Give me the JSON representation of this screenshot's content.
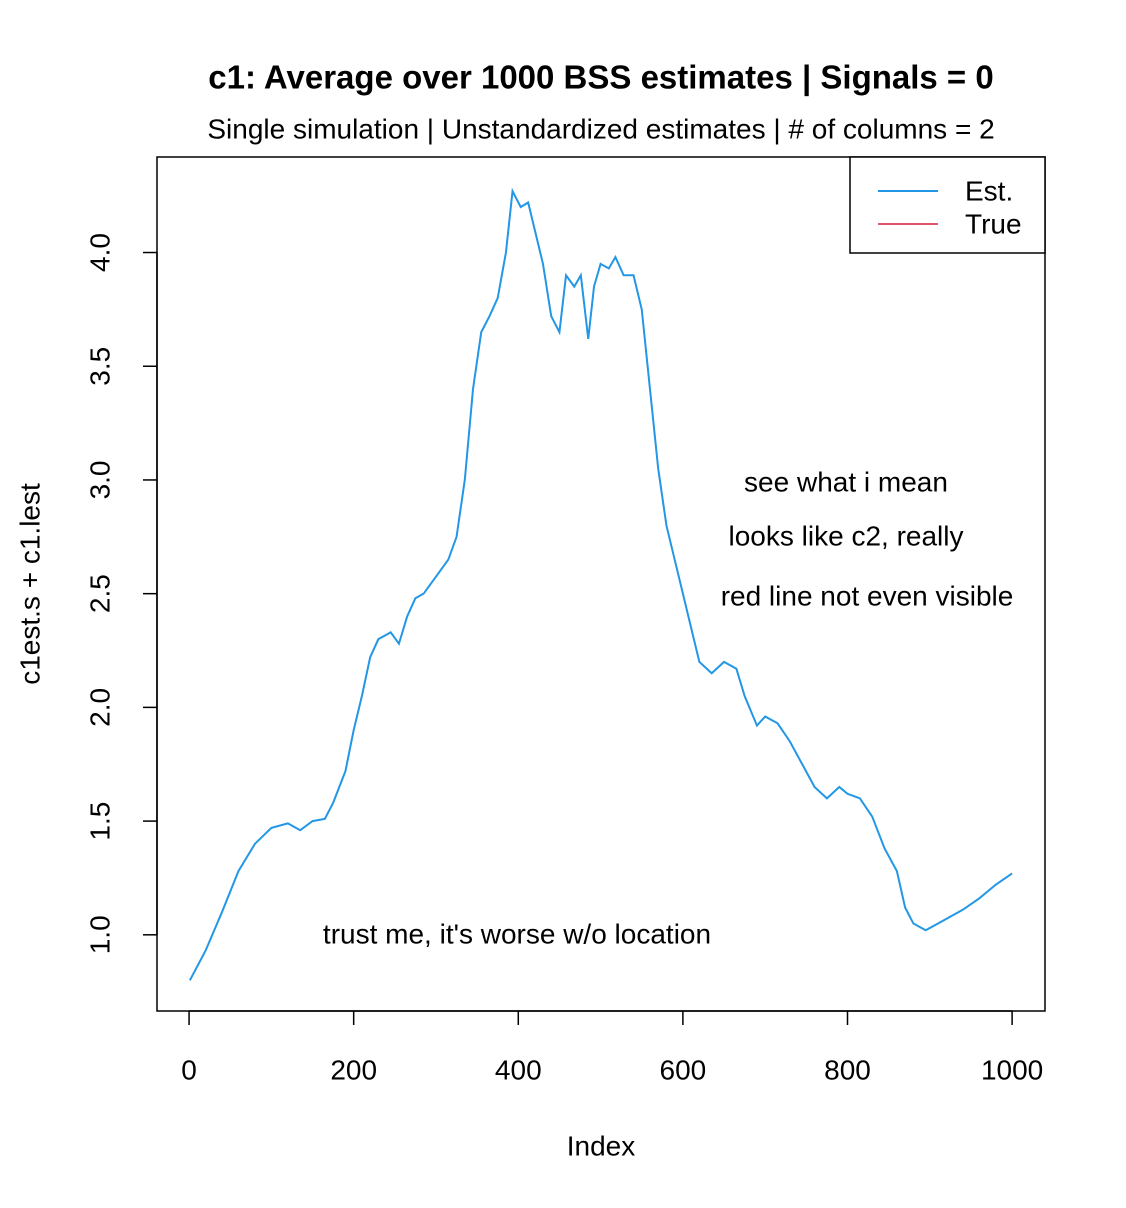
{
  "chart_data": {
    "type": "line",
    "title": "c1: Average over 1000 BSS estimates  |  Signals = 0",
    "subtitle": "Single simulation  |  Unstandardized estimates  |  # of columns = 2",
    "x_label": "Index",
    "y_label": "c1est.s + c1.lest",
    "annotations": [
      "see what i mean",
      "looks like c2, really",
      "red line not even visible",
      "trust me, it's worse w/o location"
    ],
    "legend_position": "top-right",
    "xlim": [
      -38.96,
      1039.96
    ],
    "xticks": [
      0,
      200,
      400,
      600,
      800,
      1000
    ],
    "ylim": [
      0.665,
      4.42
    ],
    "yticks": [
      1.0,
      1.5,
      2.0,
      2.5,
      3.0,
      3.5,
      4.0
    ],
    "ytick_labels": [
      "1.0",
      "1.5",
      "2.0",
      "2.5",
      "3.0",
      "3.5",
      "4.0"
    ],
    "x": [
      1,
      20,
      40,
      60,
      80,
      100,
      120,
      135,
      150,
      165,
      175,
      190,
      200,
      210,
      220,
      230,
      245,
      255,
      265,
      275,
      285,
      295,
      305,
      315,
      325,
      335,
      345,
      355,
      365,
      375,
      385,
      393,
      403,
      412,
      420,
      430,
      440,
      450,
      458,
      468,
      476,
      485,
      492,
      500,
      510,
      518,
      528,
      540,
      550,
      560,
      570,
      580,
      590,
      600,
      610,
      620,
      635,
      650,
      665,
      675,
      690,
      700,
      715,
      730,
      745,
      760,
      775,
      790,
      800,
      815,
      830,
      845,
      860,
      870,
      880,
      895,
      910,
      925,
      940,
      960,
      980,
      1000
    ],
    "series": [
      {
        "name": "Est.",
        "color": "#2297E6",
        "values": [
          0.8,
          0.93,
          1.1,
          1.28,
          1.4,
          1.47,
          1.49,
          1.46,
          1.5,
          1.51,
          1.58,
          1.72,
          1.9,
          2.05,
          2.22,
          2.3,
          2.33,
          2.28,
          2.4,
          2.48,
          2.5,
          2.55,
          2.6,
          2.65,
          2.75,
          3.0,
          3.4,
          3.65,
          3.72,
          3.8,
          4.0,
          4.27,
          4.2,
          4.22,
          4.1,
          3.95,
          3.72,
          3.65,
          3.9,
          3.85,
          3.9,
          3.62,
          3.85,
          3.95,
          3.93,
          3.98,
          3.9,
          3.9,
          3.75,
          3.4,
          3.05,
          2.8,
          2.65,
          2.5,
          2.35,
          2.2,
          2.15,
          2.2,
          2.17,
          2.05,
          1.92,
          1.96,
          1.93,
          1.85,
          1.75,
          1.65,
          1.6,
          1.65,
          1.62,
          1.6,
          1.52,
          1.38,
          1.28,
          1.12,
          1.05,
          1.02,
          1.05,
          1.08,
          1.11,
          1.16,
          1.22,
          1.27
        ]
      },
      {
        "name": "True",
        "color": "#DF536B",
        "values": [
          null,
          null,
          null,
          null,
          null,
          null,
          null,
          null,
          null,
          null,
          null,
          null,
          null,
          null,
          null,
          null,
          null,
          null,
          null,
          null,
          null,
          null,
          null,
          null,
          null,
          null,
          null,
          null,
          null,
          null,
          null,
          null,
          null,
          null,
          null,
          null,
          null,
          null,
          null,
          null,
          null,
          null,
          null,
          null,
          null,
          null,
          null,
          null,
          null,
          null,
          null,
          null,
          null,
          null,
          null,
          null,
          null,
          null,
          null,
          null,
          null,
          null,
          null,
          null,
          null,
          null,
          null,
          null,
          null,
          null,
          null,
          null,
          null,
          null,
          null,
          null,
          null,
          null,
          null,
          null,
          null,
          null
        ]
      }
    ]
  }
}
